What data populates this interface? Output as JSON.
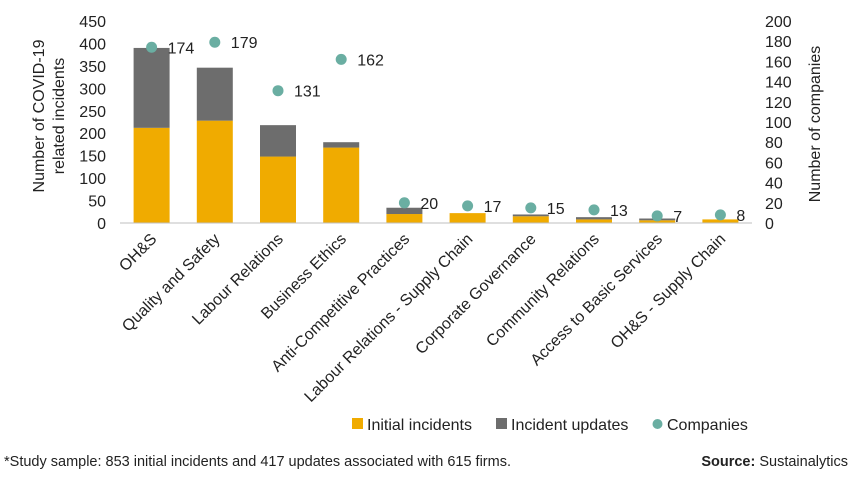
{
  "chart_data": {
    "type": "bar",
    "stacked": true,
    "categories": [
      "OH&S",
      "Quality and Safety",
      "Labour Relations",
      "Business Ethics",
      "Anti-Competitive Practices",
      "Labour Relations - Supply Chain",
      "Corporate Governance",
      "Community Relations",
      "Access to Basic Services",
      "OH&S - Supply Chain"
    ],
    "series": [
      {
        "name": "Initial incidents",
        "type": "bar",
        "axis": "left",
        "color": "#F0AB00",
        "values": [
          212,
          228,
          148,
          168,
          20,
          22,
          15,
          8,
          6,
          8
        ]
      },
      {
        "name": "Incident updates",
        "type": "bar",
        "axis": "left",
        "color": "#6D6D6D",
        "values": [
          178,
          118,
          70,
          12,
          14,
          0,
          4,
          5,
          4,
          0
        ]
      },
      {
        "name": "Companies",
        "type": "scatter",
        "axis": "right",
        "color": "#6AAEA2",
        "values": [
          174,
          179,
          131,
          162,
          20,
          17,
          15,
          13,
          7,
          8
        ],
        "labels": [
          "174",
          "179",
          "131",
          "162",
          "20",
          "17",
          "15",
          "13",
          "7",
          "8"
        ]
      }
    ],
    "ylabel": "Number of COVID-19 related incidents",
    "ylabel_lines": [
      "Number of COVID-19",
      "related incidents"
    ],
    "y2label": "Number of companies",
    "ylim": [
      0,
      450
    ],
    "y2lim": [
      0,
      200
    ],
    "yticks": [
      "0",
      "50",
      "100",
      "150",
      "200",
      "250",
      "300",
      "350",
      "400",
      "450"
    ],
    "y2ticks": [
      "0",
      "20",
      "40",
      "60",
      "80",
      "100",
      "120",
      "140",
      "160",
      "180",
      "200"
    ],
    "grid": false,
    "legend": {
      "placement": "bottom",
      "items": [
        "Initial incidents",
        "Incident updates",
        "Companies"
      ]
    }
  },
  "footnote": "*Study sample: 853 initial incidents and 417 updates associated with 615 firms.",
  "source": {
    "label": "Source:",
    "value": "Sustainalytics"
  }
}
